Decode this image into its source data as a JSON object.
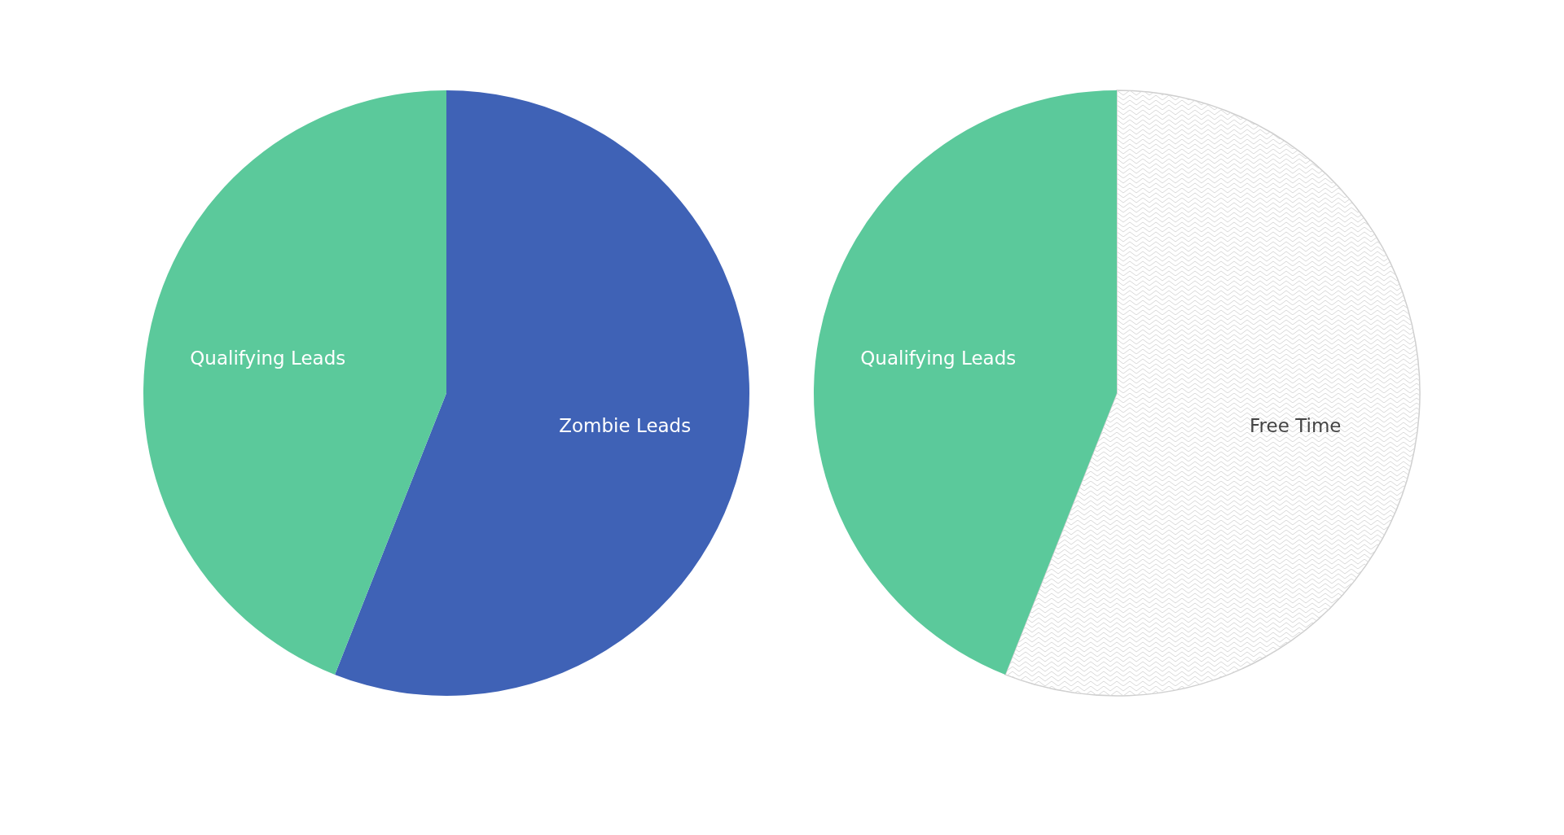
{
  "chart_data": [
    {
      "type": "pie",
      "categories": [
        "Zombie Leads",
        "Qualifying Leads"
      ],
      "values": [
        56,
        44
      ],
      "colors": [
        "#3f62b6",
        "#5bc99b"
      ]
    },
    {
      "type": "pie",
      "categories": [
        "Free Time",
        "Qualifying Leads"
      ],
      "values": [
        56,
        44
      ],
      "colors": [
        "#ffffff",
        "#5bc99b"
      ]
    }
  ]
}
